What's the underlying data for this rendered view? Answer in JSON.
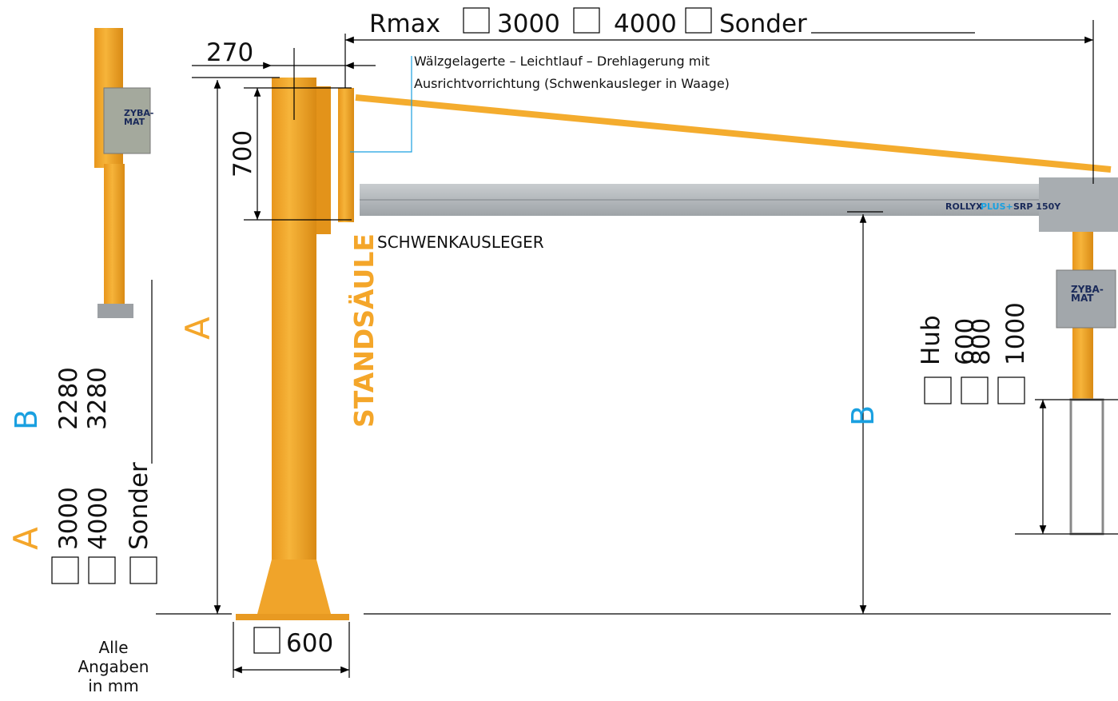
{
  "rmax": {
    "label": "Rmax",
    "options": [
      "3000",
      "4000",
      "Sonder"
    ]
  },
  "dimensions": {
    "offset": "270",
    "height": "700",
    "base": "600"
  },
  "callout": [
    "Wälzgelagerte – Leichtlauf – Drehlagerung mit",
    "Ausrichtvorrichtung (Schwenkausleger in Waage)"
  ],
  "parts": {
    "column": "STANDSÄULE",
    "boom": "SCHWENKAUSLEGER"
  },
  "labels": {
    "a": "A",
    "b": "B"
  },
  "hub": {
    "label": "Hub",
    "options": [
      "600",
      "800",
      "1000"
    ]
  },
  "legend": {
    "b_label": "B",
    "b_options": [
      "2280",
      "3280"
    ],
    "a_label": "A",
    "a_options": [
      "3000",
      "4000",
      "Sonder"
    ]
  },
  "product": {
    "brand": "ROLLYX",
    "plus": "PLUS+",
    "model": "SRP 150Y",
    "device_top": "ZYBA-",
    "device_bottom": "MAT"
  },
  "note": [
    "Alle",
    "Angaben",
    "in mm"
  ]
}
